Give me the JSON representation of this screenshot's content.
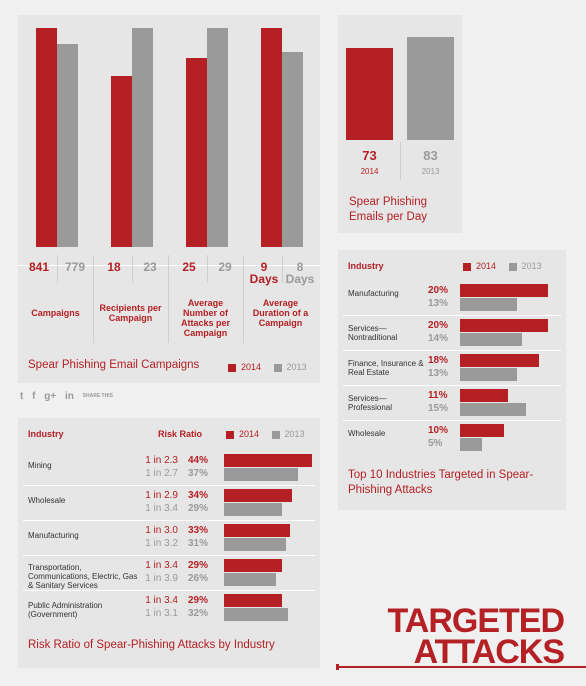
{
  "colors": {
    "y2014": "#b42024",
    "y2013": "#9a9a9a"
  },
  "legend": {
    "y2014": "2014",
    "y2013": "2013"
  },
  "campaigns": {
    "caption": "Spear Phishing Email Campaigns",
    "groups": [
      {
        "label": "Campaigns",
        "v2014": "841",
        "v2013": "779",
        "u2014": "",
        "u2013": ""
      },
      {
        "label": "Recipients per Campaign",
        "v2014": "18",
        "v2013": "23",
        "u2014": "",
        "u2013": ""
      },
      {
        "label": "Average Number of Attacks per Campaign",
        "v2014": "25",
        "v2013": "29",
        "u2014": "",
        "u2013": ""
      },
      {
        "label": "Average Duration of a Campaign",
        "v2014": "9",
        "v2013": "8",
        "u2014": "Days",
        "u2013": "Days"
      }
    ]
  },
  "per_day": {
    "caption": "Spear Phishing Emails per Day",
    "v2014": "73",
    "v2013": "83",
    "y2014": "2014",
    "y2013": "2013"
  },
  "top10": {
    "caption": "Top 10 Industries Targeted in Spear-Phishing Attacks",
    "header": "Industry",
    "rows": [
      {
        "name": "Manufacturing",
        "p2014": "20%",
        "p2013": "13%"
      },
      {
        "name": "Services—Nontraditional",
        "p2014": "20%",
        "p2013": "14%"
      },
      {
        "name": "Finance, Insurance & Real Estate",
        "p2014": "18%",
        "p2013": "13%"
      },
      {
        "name": "Services—Professional",
        "p2014": "11%",
        "p2013": "15%"
      },
      {
        "name": "Wholesale",
        "p2014": "10%",
        "p2013": "5%"
      }
    ]
  },
  "risk": {
    "caption": "Risk Ratio of Spear-Phishing Attacks by Industry",
    "header_industry": "Industry",
    "header_ratio": "Risk Ratio",
    "rows": [
      {
        "name": "Mining",
        "r2014": "1 in 2.3",
        "p2014": "44%",
        "r2013": "1 in 2.7",
        "p2013": "37%"
      },
      {
        "name": "Wholesale",
        "r2014": "1 in 2.9",
        "p2014": "34%",
        "r2013": "1 in 3.4",
        "p2013": "29%"
      },
      {
        "name": "Manufacturing",
        "r2014": "1 in 3.0",
        "p2014": "33%",
        "r2013": "1 in 3.2",
        "p2013": "31%"
      },
      {
        "name": "Transportation, Communications, Electric, Gas & Sanitary Services",
        "r2014": "1 in 3.4",
        "p2014": "29%",
        "r2013": "1 in 3.9",
        "p2013": "26%"
      },
      {
        "name": "Public Administration (Government)",
        "r2014": "1 in 3.4",
        "p2014": "29%",
        "r2013": "1 in 3.1",
        "p2013": "32%"
      }
    ]
  },
  "share": {
    "label": "SHARE THIS"
  },
  "title": {
    "line1": "TARGETED",
    "line2": "ATTACKS"
  },
  "chart_data": [
    {
      "type": "bar",
      "title": "Spear Phishing Email Campaigns",
      "categories": [
        "Campaigns",
        "Recipients per Campaign",
        "Average Number of Attacks per Campaign",
        "Average Duration of a Campaign"
      ],
      "series": [
        {
          "name": "2014",
          "values": [
            841,
            18,
            25,
            9
          ]
        },
        {
          "name": "2013",
          "values": [
            779,
            23,
            29,
            8
          ]
        }
      ]
    },
    {
      "type": "bar",
      "title": "Spear Phishing Emails per Day",
      "categories": [
        "2014",
        "2013"
      ],
      "values": [
        73,
        83
      ]
    },
    {
      "type": "bar",
      "title": "Top 10 Industries Targeted in Spear-Phishing Attacks",
      "categories": [
        "Manufacturing",
        "Services—Nontraditional",
        "Finance, Insurance & Real Estate",
        "Services—Professional",
        "Wholesale"
      ],
      "series": [
        {
          "name": "2014",
          "values": [
            20,
            20,
            18,
            11,
            10
          ]
        },
        {
          "name": "2013",
          "values": [
            13,
            14,
            13,
            15,
            5
          ]
        }
      ]
    },
    {
      "type": "bar",
      "title": "Risk Ratio of Spear-Phishing Attacks by Industry",
      "categories": [
        "Mining",
        "Wholesale",
        "Manufacturing",
        "Transportation, Communications, Electric, Gas & Sanitary Services",
        "Public Administration (Government)"
      ],
      "series": [
        {
          "name": "2014",
          "values": [
            44,
            34,
            33,
            29,
            29
          ]
        },
        {
          "name": "2013",
          "values": [
            37,
            29,
            31,
            26,
            32
          ]
        }
      ]
    }
  ]
}
